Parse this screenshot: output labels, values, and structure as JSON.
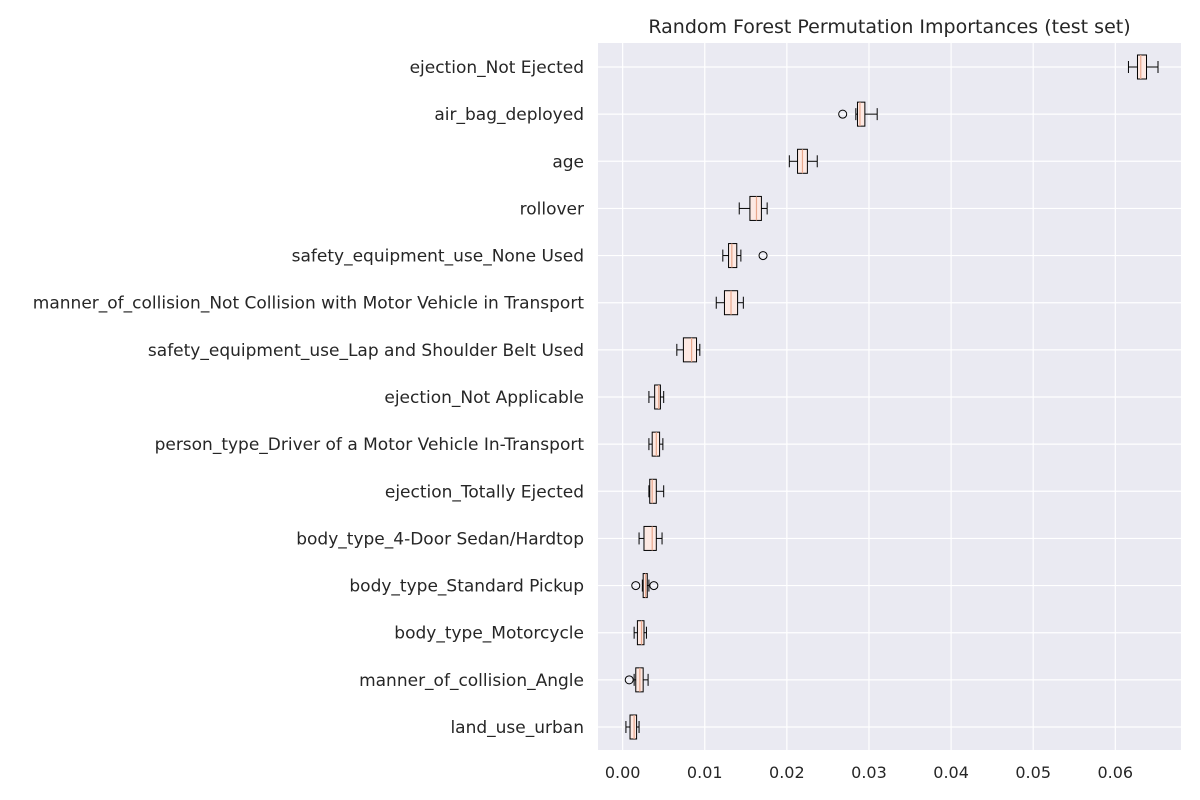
{
  "chart_data": {
    "type": "boxplot",
    "orientation": "horizontal",
    "title": "Random Forest Permutation Importances (test set)",
    "xlabel": "",
    "ylabel": "",
    "xlim": [
      -0.003,
      0.068
    ],
    "xticks": [
      0.0,
      0.01,
      0.02,
      0.03,
      0.04,
      0.05,
      0.06
    ],
    "xtick_labels": [
      "0.00",
      "0.01",
      "0.02",
      "0.03",
      "0.04",
      "0.05",
      "0.06"
    ],
    "grid": true,
    "colors": {
      "plot_background": "#EAEAF2",
      "grid": "#FFFFFF",
      "box_fill": "#FDE9E3",
      "median": "#E8A78C",
      "outline": "#000000"
    },
    "features": [
      {
        "label": "ejection_Not Ejected",
        "whisker_low": 0.0616,
        "q1": 0.0627,
        "median": 0.0631,
        "q3": 0.0638,
        "whisker_high": 0.0652,
        "outliers": []
      },
      {
        "label": "air_bag_deployed",
        "whisker_low": 0.0284,
        "q1": 0.0286,
        "median": 0.0289,
        "q3": 0.0295,
        "whisker_high": 0.031,
        "outliers": [
          0.0268
        ]
      },
      {
        "label": "age",
        "whisker_low": 0.0203,
        "q1": 0.0213,
        "median": 0.0219,
        "q3": 0.0225,
        "whisker_high": 0.0237,
        "outliers": []
      },
      {
        "label": "rollover",
        "whisker_low": 0.0142,
        "q1": 0.0155,
        "median": 0.0163,
        "q3": 0.0169,
        "whisker_high": 0.0176,
        "outliers": []
      },
      {
        "label": "safety_equipment_use_None Used",
        "whisker_low": 0.0122,
        "q1": 0.0129,
        "median": 0.0133,
        "q3": 0.0139,
        "whisker_high": 0.0144,
        "outliers": [
          0.0171
        ]
      },
      {
        "label": "manner_of_collision_Not Collision with Motor Vehicle in Transport",
        "whisker_low": 0.0114,
        "q1": 0.0124,
        "median": 0.0132,
        "q3": 0.014,
        "whisker_high": 0.0147,
        "outliers": []
      },
      {
        "label": "safety_equipment_use_Lap and Shoulder Belt Used",
        "whisker_low": 0.0066,
        "q1": 0.0074,
        "median": 0.0084,
        "q3": 0.009,
        "whisker_high": 0.0094,
        "outliers": []
      },
      {
        "label": "ejection_Not Applicable",
        "whisker_low": 0.0032,
        "q1": 0.0039,
        "median": 0.0044,
        "q3": 0.0046,
        "whisker_high": 0.005,
        "outliers": []
      },
      {
        "label": "person_type_Driver of a Motor Vehicle In-Transport",
        "whisker_low": 0.0032,
        "q1": 0.0036,
        "median": 0.0041,
        "q3": 0.0045,
        "whisker_high": 0.0049,
        "outliers": []
      },
      {
        "label": "ejection_Totally Ejected",
        "whisker_low": 0.0032,
        "q1": 0.0033,
        "median": 0.0036,
        "q3": 0.0041,
        "whisker_high": 0.005,
        "outliers": []
      },
      {
        "label": "body_type_4-Door Sedan/Hardtop",
        "whisker_low": 0.002,
        "q1": 0.0026,
        "median": 0.0036,
        "q3": 0.0041,
        "whisker_high": 0.0048,
        "outliers": []
      },
      {
        "label": "body_type_Standard Pickup",
        "whisker_low": 0.0024,
        "q1": 0.0025,
        "median": 0.0028,
        "q3": 0.003,
        "whisker_high": 0.0032,
        "outliers": [
          0.0016,
          0.0038
        ]
      },
      {
        "label": "body_type_Motorcycle",
        "whisker_low": 0.0014,
        "q1": 0.0018,
        "median": 0.0023,
        "q3": 0.0026,
        "whisker_high": 0.0029,
        "outliers": []
      },
      {
        "label": "manner_of_collision_Angle",
        "whisker_low": 0.0014,
        "q1": 0.0016,
        "median": 0.0021,
        "q3": 0.0025,
        "whisker_high": 0.0031,
        "outliers": [
          0.0008
        ]
      },
      {
        "label": "land_use_urban",
        "whisker_low": 0.0004,
        "q1": 0.0009,
        "median": 0.0014,
        "q3": 0.0017,
        "whisker_high": 0.002,
        "outliers": []
      }
    ]
  }
}
